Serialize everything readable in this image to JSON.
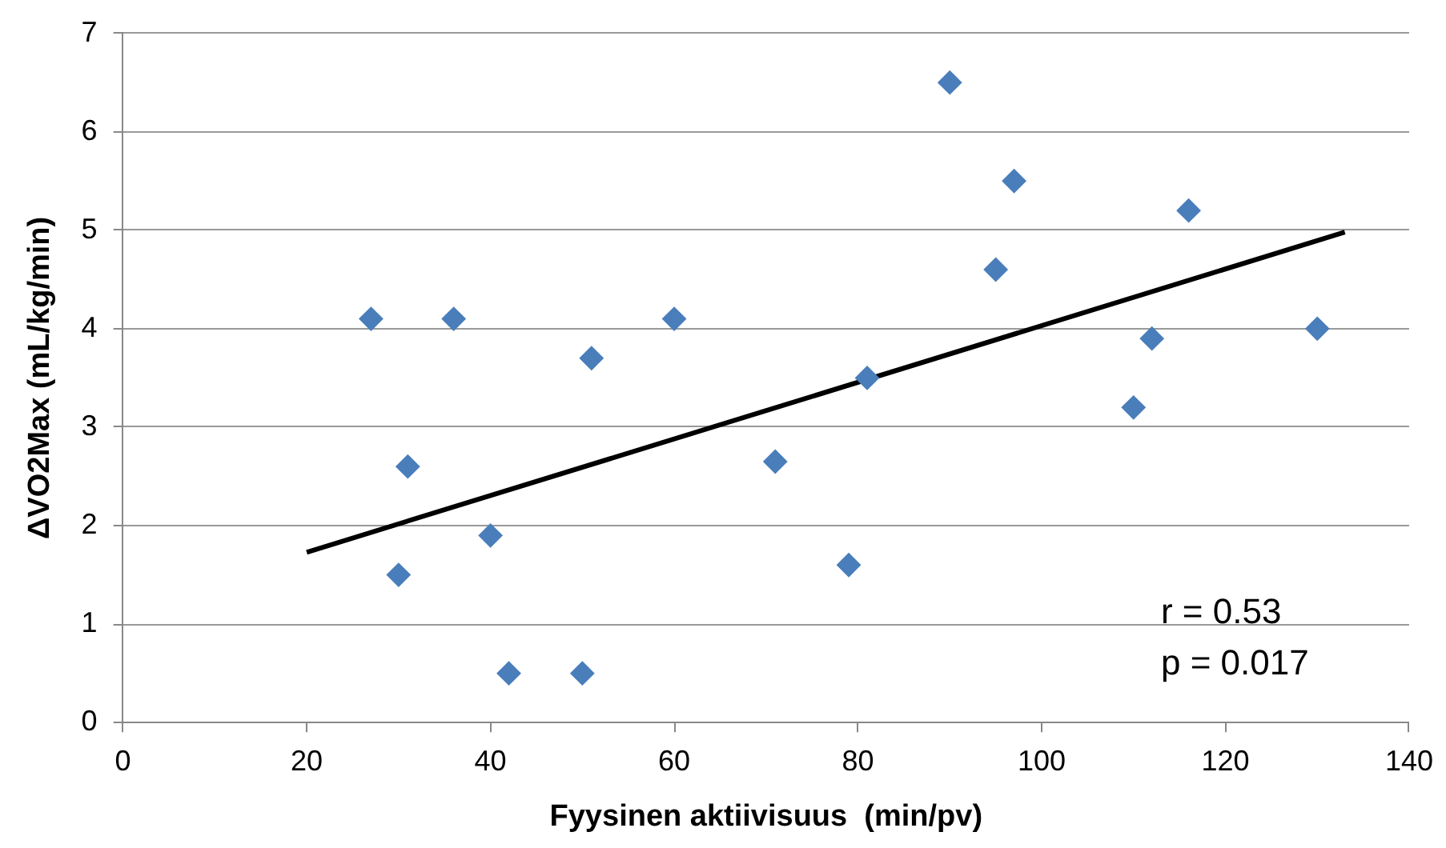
{
  "chart_data": {
    "type": "scatter",
    "xlabel": "Fyysinen aktiivisuus  (min/pv)",
    "ylabel": "ΔVO2Max (mL/kg/min)",
    "xlim": [
      0,
      140
    ],
    "xticks": [
      0,
      20,
      40,
      60,
      80,
      100,
      120,
      140
    ],
    "ylim": [
      0,
      7
    ],
    "yticks": [
      0,
      1,
      2,
      3,
      4,
      5,
      6,
      7
    ],
    "grid": "y",
    "legend": false,
    "series": [
      {
        "type": "scatter",
        "marker": "diamond",
        "color": "#4a7ebb",
        "x": [
          27,
          36,
          31,
          30,
          40,
          42,
          50,
          51,
          60,
          71,
          79,
          81,
          90,
          95,
          97,
          110,
          112,
          116,
          130
        ],
        "values": [
          4.1,
          4.1,
          2.6,
          1.5,
          1.9,
          0.5,
          0.5,
          3.7,
          4.1,
          2.65,
          1.6,
          3.5,
          6.5,
          4.6,
          5.5,
          3.2,
          3.9,
          5.2,
          4.0
        ]
      },
      {
        "type": "line",
        "marker": "none",
        "color": "#000000",
        "x": [
          20,
          133
        ],
        "values": [
          1.73,
          4.98
        ]
      }
    ],
    "annotations": [
      "r = 0.53",
      "p = 0.017"
    ]
  }
}
